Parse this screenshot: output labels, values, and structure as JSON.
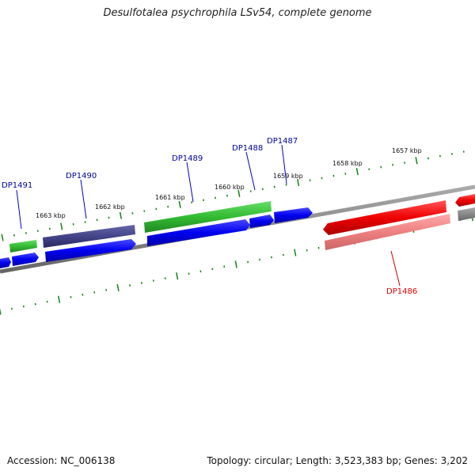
{
  "title": "Desulfotalea psychrophila LSv54, complete genome",
  "footer": {
    "accession": "Accession: NC_006138",
    "topology": "Topology: circular; Length: 3,523,383 bp; Genes: 3,202"
  },
  "scale_labels": [
    "1657 kbp",
    "1658 kbp",
    "1659 kbp",
    "1660 kbp",
    "1661 kbp",
    "1662 kbp",
    "1663 kbp"
  ],
  "gene_labels": [
    {
      "name": "DP1486",
      "color": "#dd0000"
    },
    {
      "name": "DP1487",
      "color": "#000099"
    },
    {
      "name": "DP1488",
      "color": "#000099"
    },
    {
      "name": "DP1489",
      "color": "#000099"
    },
    {
      "name": "DP1490",
      "color": "#000099"
    },
    {
      "name": "DP1491",
      "color": "#000099"
    }
  ],
  "colors": {
    "cds_forward": "#0000ee",
    "cds_reverse": "#ee0000",
    "rna": "#33bb33",
    "pseudo": "#444488",
    "backbone": "#888888",
    "ticks": "#228822"
  }
}
